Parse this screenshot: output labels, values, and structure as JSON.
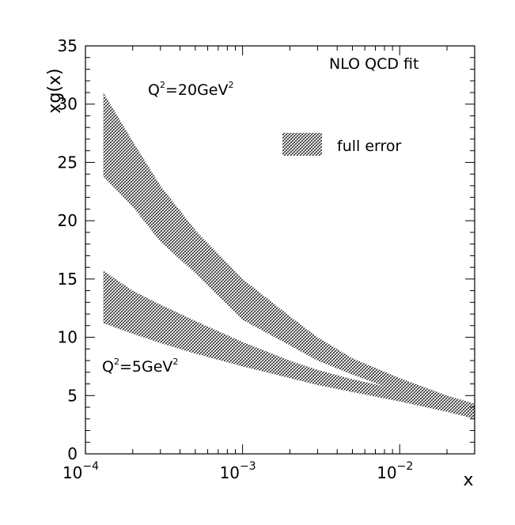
{
  "chart_data": {
    "type": "area",
    "title": "",
    "xlabel": "x",
    "ylabel": "xg(x)",
    "x_scale": "log",
    "xlim": [
      0.0001,
      0.03
    ],
    "ylim": [
      0,
      35
    ],
    "grid": false,
    "x_ticks": [
      {
        "value": 0.0001,
        "base": "10",
        "exp": "−4"
      },
      {
        "value": 0.001,
        "base": "10",
        "exp": "−3"
      },
      {
        "value": 0.01,
        "base": "10",
        "exp": "−2"
      }
    ],
    "y_ticks": [
      "0",
      "5",
      "10",
      "15",
      "20",
      "25",
      "30",
      "35"
    ],
    "annotations": {
      "fit": "NLO QCD fit",
      "q20_pre": "Q",
      "q20_sup": "2",
      "q20_mid": "=20GeV",
      "q20_sup2": "2",
      "q5_pre": "Q",
      "q5_sup": "2",
      "q5_mid": "=5GeV",
      "q5_sup2": "2"
    },
    "legend": {
      "label": "full error",
      "placement": "top-right"
    },
    "series": [
      {
        "x": [
          0.00013,
          0.0002,
          0.0003,
          0.0005,
          0.001,
          0.002,
          0.003,
          0.005,
          0.01,
          0.02,
          0.03
        ],
        "upper": [
          31.0,
          26.8,
          23.0,
          19.2,
          15.0,
          11.8,
          10.0,
          8.2,
          6.5,
          5.0,
          4.3
        ],
        "lower": [
          23.8,
          21.2,
          18.2,
          15.5,
          11.5,
          9.3,
          8.0,
          6.8,
          5.3,
          4.1,
          3.3
        ]
      },
      {
        "x": [
          0.00013,
          0.0002,
          0.0003,
          0.0005,
          0.001,
          0.002,
          0.003,
          0.005,
          0.01,
          0.02,
          0.03
        ],
        "upper": [
          15.7,
          14.0,
          12.8,
          11.4,
          9.6,
          8.0,
          7.2,
          6.4,
          5.5,
          4.6,
          4.0
        ],
        "lower": [
          11.2,
          10.3,
          9.5,
          8.6,
          7.5,
          6.5,
          5.9,
          5.3,
          4.5,
          3.6,
          3.0
        ]
      }
    ]
  }
}
